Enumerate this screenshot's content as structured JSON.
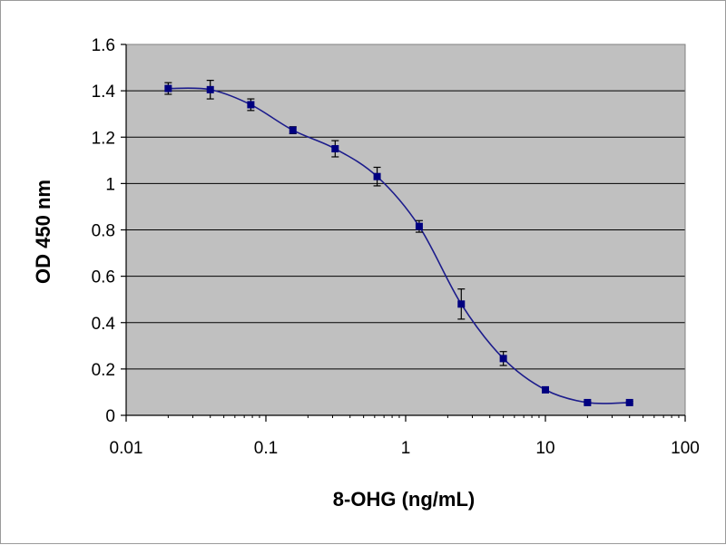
{
  "chart_data": {
    "type": "line",
    "title": "",
    "xlabel": "8-OHG (ng/mL)",
    "ylabel": "OD 450 nm",
    "xscale": "log",
    "xlim": [
      0.01,
      100
    ],
    "ylim": [
      0,
      1.6
    ],
    "x_ticks": [
      0.01,
      0.1,
      1,
      10,
      100
    ],
    "x_tick_labels": [
      "0.01",
      "0.1",
      "1",
      "10",
      "100"
    ],
    "y_ticks": [
      0,
      0.2,
      0.4,
      0.6,
      0.8,
      1,
      1.2,
      1.4,
      1.6
    ],
    "y_tick_labels": [
      "0",
      "0.2",
      "0.4",
      "0.6",
      "0.8",
      "1",
      "1.2",
      "1.4",
      "1.6"
    ],
    "grid": "horizontal",
    "legend": "none",
    "series": [
      {
        "x": [
          0.02,
          0.04,
          0.078,
          0.156,
          0.313,
          0.625,
          1.25,
          2.5,
          5,
          10,
          20,
          40
        ],
        "y": [
          1.41,
          1.405,
          1.34,
          1.23,
          1.15,
          1.03,
          0.815,
          0.48,
          0.245,
          0.11,
          0.055,
          0.055
        ],
        "error": [
          0.025,
          0.04,
          0.025,
          0.015,
          0.035,
          0.04,
          0.025,
          0.065,
          0.03,
          0.01,
          0.005,
          0.005
        ]
      }
    ],
    "colors": {
      "plot_background": "#c0c0c0",
      "gridline": "#000000",
      "series": "#1c1c8c",
      "marker": "#000080",
      "errorbar": "#000000"
    }
  }
}
